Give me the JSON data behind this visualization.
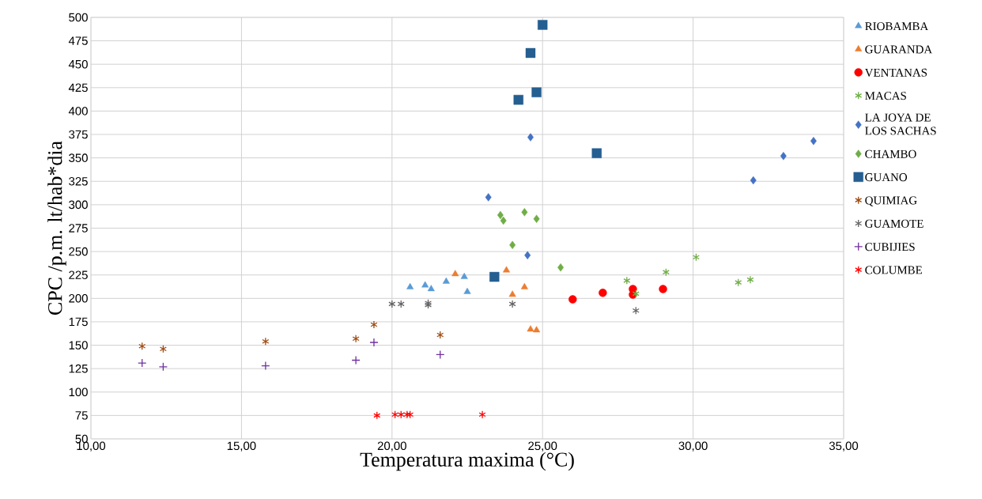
{
  "chart_data": {
    "type": "scatter",
    "xlabel": "Temperatura maxima (°C)",
    "ylabel": "CPC /p.m. lt/hab*dia",
    "xlim": [
      10,
      35
    ],
    "xticks": [
      {
        "value": 10,
        "label": "10,00"
      },
      {
        "value": 15,
        "label": "15,00"
      },
      {
        "value": 20,
        "label": "20,00"
      },
      {
        "value": 25,
        "label": "25,00"
      },
      {
        "value": 30,
        "label": "30,00"
      },
      {
        "value": 35,
        "label": "35,00"
      }
    ],
    "ylim": [
      50,
      500
    ],
    "yticks": [
      50,
      75,
      100,
      125,
      150,
      175,
      200,
      225,
      250,
      275,
      300,
      325,
      350,
      375,
      400,
      425,
      450,
      475,
      500
    ],
    "grid": true,
    "legend": "right",
    "series": [
      {
        "name": "RIOBAMBA",
        "color": "#5b9bd5",
        "marker": "triangle",
        "x": [
          20.6,
          21.1,
          21.3,
          21.8,
          22.4,
          22.5
        ],
        "values": [
          212,
          214,
          210,
          218,
          223,
          207
        ]
      },
      {
        "name": "GUARANDA",
        "color": "#ed7d31",
        "marker": "triangle",
        "x": [
          22.1,
          23.8,
          24.0,
          24.4,
          24.6,
          24.8
        ],
        "values": [
          226,
          230,
          204,
          212,
          167,
          166
        ]
      },
      {
        "name": "VENTANAS",
        "color": "#ff0000",
        "marker": "circle",
        "x": [
          26.0,
          27.0,
          28.0,
          28.0,
          29.0
        ],
        "values": [
          199,
          206,
          210,
          204,
          210
        ]
      },
      {
        "name": "MACAS",
        "color": "#70ad47",
        "marker": "cross",
        "x": [
          27.8,
          28.1,
          29.1,
          30.1,
          31.5,
          31.9
        ],
        "values": [
          219,
          205,
          228,
          244,
          217,
          220
        ]
      },
      {
        "name": "LA JOYA DE LOS SACHAS",
        "color": "#4472c4",
        "marker": "diamond",
        "x": [
          23.2,
          24.5,
          24.6,
          32.0,
          33.0,
          34.0
        ],
        "values": [
          308,
          246,
          372,
          326,
          352,
          368
        ]
      },
      {
        "name": "CHAMBO",
        "color": "#70ad47",
        "marker": "diamond",
        "x": [
          23.6,
          23.7,
          24.0,
          24.4,
          24.8,
          25.6
        ],
        "values": [
          289,
          283,
          257,
          292,
          285,
          233
        ]
      },
      {
        "name": "GUANO",
        "color": "#255e91",
        "marker": "square",
        "x": [
          23.4,
          24.2,
          24.6,
          24.8,
          25.0,
          26.8
        ],
        "values": [
          223,
          412,
          462,
          420,
          492,
          355
        ]
      },
      {
        "name": "QUIMIAG",
        "color": "#9e480e",
        "marker": "cross",
        "x": [
          11.7,
          12.4,
          15.8,
          18.8,
          19.4,
          21.6
        ],
        "values": [
          149,
          146,
          154,
          157,
          172,
          161
        ]
      },
      {
        "name": "GUAMOTE",
        "color": "#636363",
        "marker": "cross",
        "x": [
          20.0,
          20.3,
          21.2,
          21.2,
          24.0,
          28.1
        ],
        "values": [
          194,
          194,
          193,
          195,
          194,
          187
        ]
      },
      {
        "name": "CUBIJIES",
        "color": "#7030a0",
        "marker": "plus",
        "x": [
          11.7,
          12.4,
          15.8,
          18.8,
          19.4,
          21.6
        ],
        "values": [
          131,
          127,
          128,
          134,
          153,
          140
        ]
      },
      {
        "name": "COLUMBE",
        "color": "#ff0000",
        "marker": "cross",
        "x": [
          19.5,
          20.1,
          20.3,
          20.5,
          20.6,
          23.0
        ],
        "values": [
          75,
          76,
          76,
          76,
          76,
          76
        ]
      }
    ]
  }
}
